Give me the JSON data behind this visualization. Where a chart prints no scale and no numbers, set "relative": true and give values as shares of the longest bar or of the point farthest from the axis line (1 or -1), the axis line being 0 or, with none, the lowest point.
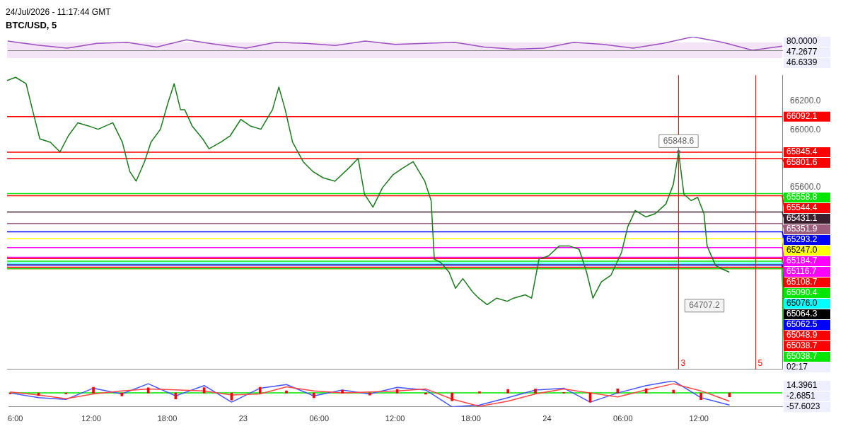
{
  "chart_data": [
    {
      "type": "line",
      "subtitle": "24/Jul/2026 - 11:17:44 GMT",
      "title": "BTC/USD, 5",
      "relative": true,
      "categories": [
        null,
        null,
        null,
        null,
        null,
        null,
        null,
        null,
        null,
        null,
        null,
        null,
        null,
        null,
        null,
        null,
        null,
        null,
        null,
        null,
        null,
        null,
        null,
        null,
        null,
        null,
        null
      ],
      "series": [
        {
          "color": "#9c4fc0",
          "values": [
            0.68,
            0.38,
            0.16,
            0.51,
            0.59,
            0.24,
            0.78,
            0.43,
            0.16,
            0.59,
            0.51,
            0.35,
            0.68,
            0.43,
            0.51,
            0.59,
            0.24,
            0.08,
            0.16,
            0.59,
            0.43,
            0.16,
            0.51,
            1,
            0.59,
            0,
            0.3
          ]
        }
      ],
      "annotations": [
        "80.0000",
        "47.2677",
        "46.6339"
      ]
    },
    {
      "type": "line",
      "legend": "right",
      "x": [
        "2026-07-22T05:30",
        "2026-07-22T06:10",
        "2026-07-22T07:00",
        "2026-07-22T07:30",
        "2026-07-22T08:05",
        "2026-07-22T08:55",
        "2026-07-22T09:40",
        "2026-07-22T10:20",
        "2026-07-22T11:05",
        "2026-07-22T11:55",
        "2026-07-22T12:40",
        "2026-07-22T13:50",
        "2026-07-22T14:35",
        "2026-07-22T15:10",
        "2026-07-22T15:40",
        "2026-07-22T16:20",
        "2026-07-22T16:50",
        "2026-07-22T17:35",
        "2026-07-22T18:10",
        "2026-07-22T18:40",
        "2026-07-22T19:10",
        "2026-07-22T19:30",
        "2026-07-22T20:05",
        "2026-07-22T20:55",
        "2026-07-22T21:25",
        "2026-07-22T22:20",
        "2026-07-22T23:05",
        "2026-07-22T23:55",
        "2026-07-23T00:40",
        "2026-07-23T01:30",
        "2026-07-23T02:25",
        "2026-07-23T02:55",
        "2026-07-23T03:25",
        "2026-07-23T04:00",
        "2026-07-23T04:50",
        "2026-07-23T05:35",
        "2026-07-23T06:25",
        "2026-07-23T07:20",
        "2026-07-23T08:25",
        "2026-07-23T09:10",
        "2026-07-23T09:40",
        "2026-07-23T10:20",
        "2026-07-23T11:05",
        "2026-07-23T11:55",
        "2026-07-23T12:40",
        "2026-07-23T13:30",
        "2026-07-23T14:25",
        "2026-07-23T14:55",
        "2026-07-23T15:10",
        "2026-07-23T15:40",
        "2026-07-23T16:20",
        "2026-07-23T16:50",
        "2026-07-23T17:25",
        "2026-07-23T18:10",
        "2026-07-23T18:40",
        "2026-07-23T19:20",
        "2026-07-23T20:05",
        "2026-07-23T20:55",
        "2026-07-23T21:25",
        "2026-07-23T22:20",
        "2026-07-23T22:50",
        "2026-07-23T23:25",
        "2026-07-24T00:10",
        "2026-07-24T01:00",
        "2026-07-24T01:50",
        "2026-07-24T02:35",
        "2026-07-24T03:10",
        "2026-07-24T03:40",
        "2026-07-24T04:20",
        "2026-07-24T05:05",
        "2026-07-24T05:55",
        "2026-07-24T06:25",
        "2026-07-24T07:00",
        "2026-07-24T07:50",
        "2026-07-24T08:35",
        "2026-07-24T09:25",
        "2026-07-24T10:00",
        "2026-07-24T10:25",
        "2026-07-24T10:50",
        "2026-07-24T11:25",
        "2026-07-24T11:55",
        "2026-07-24T12:25",
        "2026-07-24T12:40",
        "2026-07-24T13:20",
        "2026-07-24T13:50",
        "2026-07-24T14:25"
      ],
      "series": [
        {
          "color": "#1b7a1b",
          "values": [
            66343,
            66365,
            66321,
            66141,
            65938,
            65915,
            65848,
            65960,
            66050,
            66028,
            66005,
            66050,
            65915,
            65713,
            65645,
            65780,
            65915,
            66005,
            66185,
            66321,
            66141,
            66141,
            66028,
            65938,
            65870,
            65915,
            65960,
            66073,
            66028,
            66005,
            66141,
            66298,
            66141,
            65915,
            65780,
            65713,
            65668,
            65645,
            65735,
            65803,
            65555,
            65465,
            65600,
            65690,
            65735,
            65780,
            65645,
            65510,
            65104,
            65082,
            65014,
            64902,
            64969,
            64879,
            64834,
            64789,
            64834,
            64812,
            64834,
            64857,
            64834,
            65104,
            65127,
            65195,
            65195,
            65172,
            65014,
            64834,
            64947,
            64992,
            65150,
            65330,
            65442,
            65397,
            65420,
            65487,
            65622,
            65849,
            65555,
            65510,
            65533,
            65420,
            65195,
            65060,
            65037,
            65014
          ]
        }
      ],
      "xlim": [
        "2026-07-22T05:30",
        "2026-07-24T18:35"
      ],
      "ylim": [
        64340,
        66380
      ],
      "yticks": [
        {
          "value": 65600,
          "label": "65600.0"
        },
        {
          "value": 66000,
          "label": "66000.0"
        },
        {
          "value": 66200,
          "label": "66200.0"
        }
      ],
      "tick_labels": "y",
      "ref_lines": [
        {
          "axis": "y",
          "value": 66092.1,
          "label": "66092.1",
          "color": "#ff0000"
        },
        {
          "axis": "y",
          "value": 65845.4,
          "label": "65845.4",
          "color": "#ff0000"
        },
        {
          "axis": "y",
          "value": 65801.6,
          "label": "65801.6",
          "color": "#ff0000"
        },
        {
          "axis": "y",
          "value": 65558.8,
          "label": "65558.8",
          "color": "#00e600"
        },
        {
          "axis": "y",
          "value": 65544.4,
          "label": "65544.4",
          "color": "#ff0000"
        },
        {
          "axis": "y",
          "value": 65431.1,
          "label": "65431.1",
          "color": "#3a1f2e"
        },
        {
          "axis": "y",
          "value": 65351.9,
          "label": "65351.9",
          "color": "#9c5c7c"
        },
        {
          "axis": "y",
          "value": 65293.2,
          "label": "65293.2",
          "color": "#0000ff"
        },
        {
          "axis": "y",
          "value": 65247.0,
          "label": "65247.0",
          "color": "#ffff00"
        },
        {
          "axis": "y",
          "value": 65184.7,
          "label": "65184.7",
          "color": "#ff00ff"
        },
        {
          "axis": "y",
          "value": 65116.7,
          "label": "65116.7",
          "color": "#ff00ff"
        },
        {
          "axis": "y",
          "value": 65108.7,
          "label": "65108.7",
          "color": "#ff0000"
        },
        {
          "axis": "y",
          "value": 65090.4,
          "label": "65090.4",
          "color": "#00e600"
        },
        {
          "axis": "y",
          "value": 65076.0,
          "label": "65076.0",
          "color": "#00ffff"
        },
        {
          "axis": "y",
          "value": 65064.3,
          "label": "65064.3",
          "color": "#000000"
        },
        {
          "axis": "y",
          "value": 65062.5,
          "label": "65062.5",
          "color": "#0000ff"
        },
        {
          "axis": "y",
          "value": 65048.9,
          "label": "65048.9",
          "color": "#ff0000"
        },
        {
          "axis": "y",
          "value": 65038.7,
          "label": "65038.7",
          "color": "#ff0000"
        },
        {
          "axis": "y",
          "value": 65038.7,
          "label": "65038.7",
          "color": "#00e600"
        },
        {
          "axis": "x",
          "value": "2026-07-24T10:25",
          "color": "#ff0000"
        },
        {
          "axis": "x",
          "value": "2026-07-24T16:30",
          "color": "#ff0000"
        }
      ],
      "annotations": [
        {
          "text": "65848.6",
          "x": "2026-07-24T10:25",
          "y": 65849
        },
        "3",
        "5",
        "64707.2",
        "02:17"
      ]
    },
    {
      "type": "line",
      "relative": true,
      "x": [
        "2026-07-22T05:35",
        "2026-07-22T07:50",
        "2026-07-22T10:00",
        "2026-07-22T12:10",
        "2026-07-22T14:25",
        "2026-07-22T16:30",
        "2026-07-22T18:40",
        "2026-07-22T20:55",
        "2026-07-22T23:05",
        "2026-07-23T01:20",
        "2026-07-23T03:25",
        "2026-07-23T05:35",
        "2026-07-23T07:50",
        "2026-07-23T10:00",
        "2026-07-23T12:10",
        "2026-07-23T14:25",
        "2026-07-23T16:30",
        "2026-07-23T18:40",
        "2026-07-23T20:55",
        "2026-07-23T23:05",
        "2026-07-24T01:20",
        "2026-07-24T03:25",
        "2026-07-24T05:35",
        "2026-07-24T07:50",
        "2026-07-24T10:00",
        "2026-07-24T12:10",
        "2026-07-24T14:25"
      ],
      "series": [
        {
          "type": "bar",
          "color": "#ff0000",
          "values": [
            -0.07,
            -0.19,
            -0.06,
            0.41,
            -0.22,
            0.37,
            -0.43,
            0.38,
            -0.51,
            0.41,
            0.16,
            -0.35,
            0.21,
            -0.15,
            0.25,
            -0.09,
            -0.56,
            0.09,
            0.25,
            0.28,
            0.04,
            -0.66,
            0.29,
            0.31,
            0.21,
            -0.49,
            -0.28
          ]
        },
        {
          "color": "#ff4444",
          "values": [
            0.07,
            -0.15,
            -0.41,
            -0.07,
            0.15,
            0.29,
            0.22,
            0.15,
            -0.15,
            -0.07,
            0.44,
            0.15,
            0,
            0.07,
            0.15,
            0.29,
            -0.44,
            -0.96,
            -0.59,
            -0.07,
            0.29,
            0,
            -0.29,
            0.22,
            0.66,
            0.15,
            -0.59
          ]
        },
        {
          "color": "#4455ff",
          "values": [
            0,
            -0.34,
            -0.47,
            0.34,
            -0.07,
            0.66,
            -0.21,
            0.53,
            -0.66,
            0.34,
            0.6,
            -0.21,
            0.21,
            -0.07,
            0.4,
            0.21,
            -1,
            -0.87,
            -0.34,
            0.21,
            0.34,
            -0.66,
            0,
            0.53,
            0.87,
            -0.34,
            -0.87
          ]
        }
      ],
      "xlim": [
        "2026-07-22T05:30",
        "2026-07-24T18:35"
      ],
      "tick_labels": "x",
      "xticks": [
        {
          "value": "2026-07-22T06:00",
          "label": "6:00"
        },
        {
          "value": "2026-07-22T12:00",
          "label": "12:00"
        },
        {
          "value": "2026-07-22T18:00",
          "label": "18:00"
        },
        {
          "value": "2026-07-23T00:00",
          "label": "23"
        },
        {
          "value": "2026-07-23T06:00",
          "label": "06:00"
        },
        {
          "value": "2026-07-23T12:00",
          "label": "12:00"
        },
        {
          "value": "2026-07-23T18:00",
          "label": "18:00"
        },
        {
          "value": "2026-07-24T00:00",
          "label": "24"
        },
        {
          "value": "2026-07-24T06:00",
          "label": "06:00"
        },
        {
          "value": "2026-07-24T12:00",
          "label": "12:00"
        }
      ],
      "ref_lines": [
        {
          "axis": "y",
          "value": 0,
          "color": "#00e600"
        }
      ],
      "annotations": [
        "14.3961",
        "-2.6851",
        "-57.6023"
      ]
    }
  ]
}
